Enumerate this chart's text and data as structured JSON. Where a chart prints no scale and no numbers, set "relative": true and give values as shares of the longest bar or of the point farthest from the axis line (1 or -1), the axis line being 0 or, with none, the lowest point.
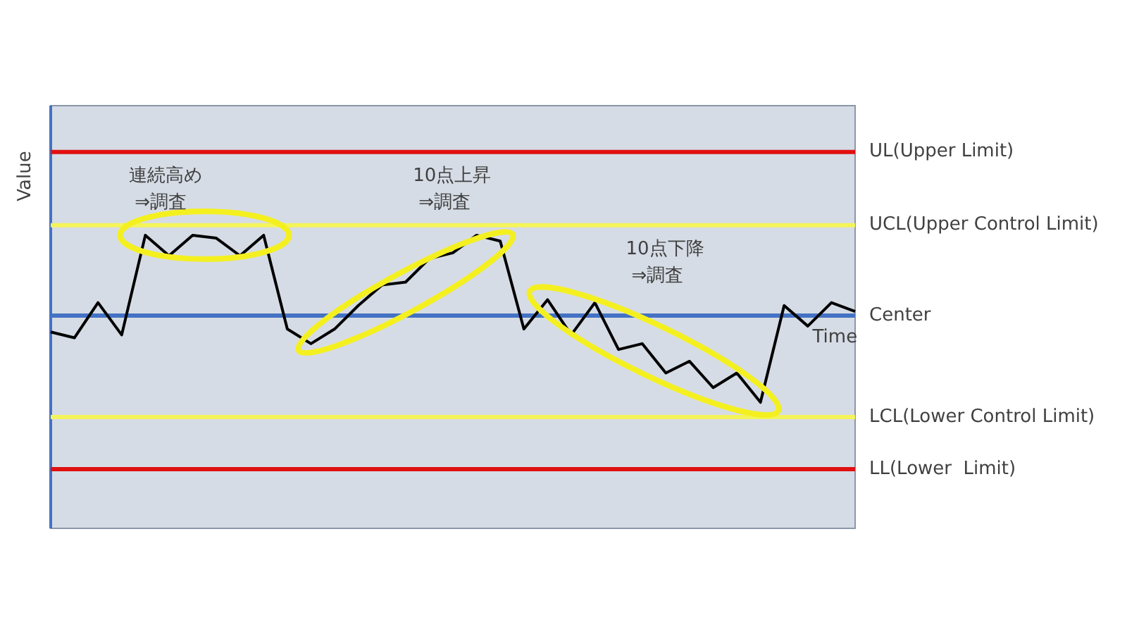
{
  "chart_data": {
    "type": "line",
    "relative": true,
    "xlabel": "Time",
    "ylabel": "Value",
    "categories": [
      null,
      null,
      null,
      null,
      null,
      null,
      null,
      null,
      null,
      null,
      null,
      null,
      null,
      null,
      null,
      null,
      null,
      null,
      null,
      null,
      null,
      null,
      null,
      null,
      null,
      null,
      null,
      null,
      null,
      null,
      null,
      null,
      null,
      null,
      null
    ],
    "series": [
      {
        "color": "#000000",
        "values": [
          0.67,
          0.65,
          0.77,
          0.66,
          1,
          0.93,
          1,
          0.99,
          0.93,
          1,
          0.68,
          0.63,
          0.68,
          0.76,
          0.83,
          0.84,
          0.92,
          0.94,
          1,
          0.98,
          0.68,
          0.78,
          0.66,
          0.77,
          0.61,
          0.63,
          0.53,
          0.57,
          0.48,
          0.53,
          0.43,
          0.76,
          0.69,
          0.77,
          0.74
        ]
      }
    ],
    "ref_lines": [
      {
        "axis": "y",
        "value": 1.284,
        "label": "UL(Upper Limit)",
        "color": "#e01010"
      },
      {
        "axis": "y",
        "value": 1.034,
        "label": "UCL(Upper Control Limit)",
        "color": "#f4f45a"
      },
      {
        "axis": "y",
        "value": 0.726,
        "label": "Center",
        "color": "#4472c4"
      },
      {
        "axis": "y",
        "value": 0.38,
        "label": "LCL(Lower Control Limit)",
        "color": "#f4f45a"
      },
      {
        "axis": "y",
        "value": 0.202,
        "label": "LL(Lower  Limit)",
        "color": "#e01010"
      }
    ],
    "annotations": [
      "連続高め\n⇒調査",
      "10点上昇\n⇒調査",
      "10点下降\n⇒調査"
    ],
    "legend": false,
    "marker": "none",
    "line_style": "solid"
  }
}
